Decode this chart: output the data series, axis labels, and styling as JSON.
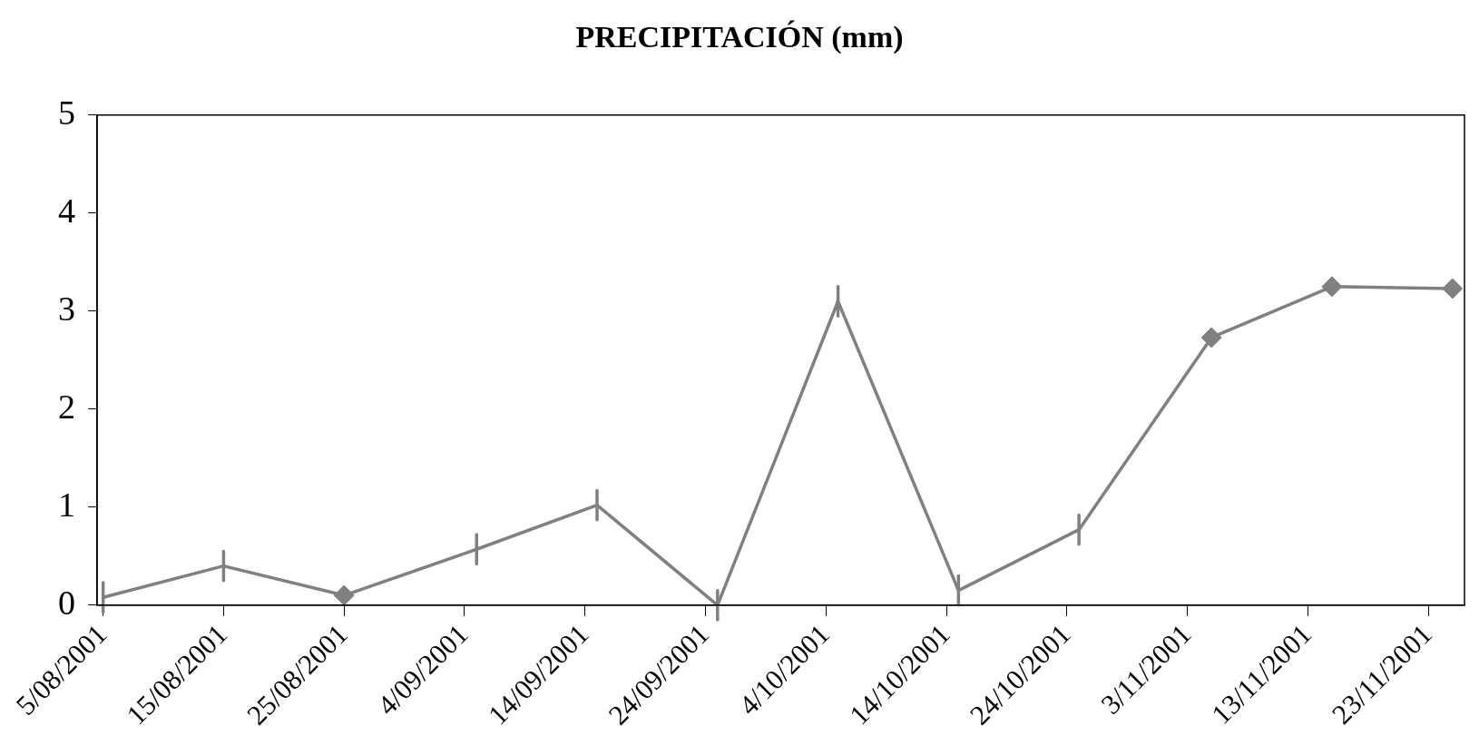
{
  "chart_data": {
    "type": "line",
    "title": "PRECIPITACIÓN (mm)",
    "x": [
      "2001-08-05",
      "2001-08-15",
      "2001-08-25",
      "2001-09-05",
      "2001-09-15",
      "2001-09-25",
      "2001-10-05",
      "2001-10-15",
      "2001-10-25",
      "2001-11-05",
      "2001-11-15",
      "2001-11-25"
    ],
    "series": [
      {
        "color": "#808080",
        "marker": "none",
        "values": [
          0.08,
          0.4,
          0.1,
          0.57,
          1.02,
          0,
          3.1,
          0.15,
          0.77,
          2.73,
          3.25,
          3.23
        ],
        "errors": [
          0.15,
          0.15,
          null,
          0.15,
          0.15,
          0.15,
          0.15,
          0.15,
          0.15,
          null,
          null,
          null
        ]
      },
      {
        "type": "scatter",
        "color": "#808080",
        "marker": "diamond",
        "values": [
          null,
          null,
          0.1,
          null,
          null,
          null,
          null,
          null,
          null,
          2.73,
          3.25,
          3.23
        ]
      }
    ],
    "xlim": [
      "2001-08-04T12:00",
      "2001-11-26"
    ],
    "xticks": [
      {
        "value": "2001-08-05",
        "label": "5/08/2001"
      },
      {
        "value": "2001-08-15",
        "label": "15/08/2001"
      },
      {
        "value": "2001-08-25",
        "label": "25/08/2001"
      },
      {
        "value": "2001-09-04",
        "label": "4/09/2001"
      },
      {
        "value": "2001-09-14",
        "label": "14/09/2001"
      },
      {
        "value": "2001-09-24",
        "label": "24/09/2001"
      },
      {
        "value": "2001-10-04",
        "label": "4/10/2001"
      },
      {
        "value": "2001-10-14",
        "label": "14/10/2001"
      },
      {
        "value": "2001-10-24",
        "label": "24/10/2001"
      },
      {
        "value": "2001-11-03",
        "label": "3/11/2001"
      },
      {
        "value": "2001-11-13",
        "label": "13/11/2001"
      },
      {
        "value": "2001-11-23",
        "label": "23/11/2001"
      }
    ],
    "ylim": [
      0,
      5
    ],
    "yticks": [
      0,
      1,
      2,
      3,
      4,
      5
    ],
    "grid": false,
    "legend": false,
    "line_style": "solid"
  }
}
